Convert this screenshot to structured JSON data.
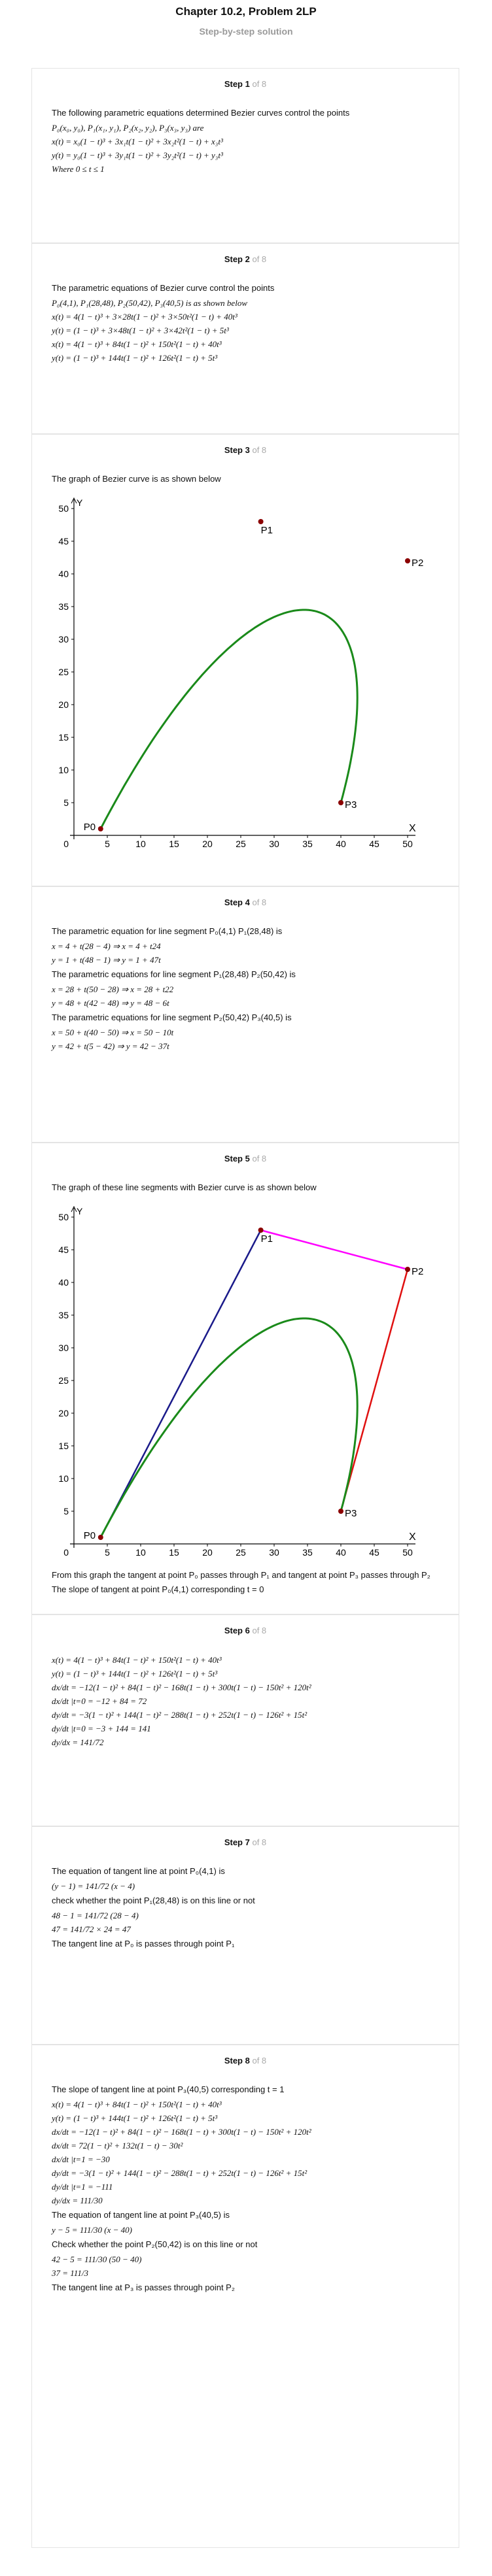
{
  "header": {
    "title": "Chapter 10.2, Problem 2LP",
    "subtitle": "Step-by-step solution"
  },
  "steps": [
    {
      "num": "Step 1",
      "of": "of 8",
      "lines": [
        {
          "type": "text",
          "v": "The following parametric equations determined Bezier curves control the points"
        },
        {
          "type": "math",
          "v": "P₀(x₀, y₀), P₁(x₁, y₁), P₂(x₂, y₂), P₃(x₃, y₃) are"
        },
        {
          "type": "math",
          "v": "x(t) = x₀(1 − t)³ + 3x₁t(1 − t)² + 3x₂t²(1 − t) + x₃t³"
        },
        {
          "type": "math",
          "v": "y(t) = y₀(1 − t)³ + 3y₁t(1 − t)² + 3y₂t²(1 − t) + y₃t³"
        },
        {
          "type": "math",
          "v": "Where   0 ≤ t ≤ 1"
        }
      ]
    },
    {
      "num": "Step 2",
      "of": "of 8",
      "lines": [
        {
          "type": "text",
          "v": "The parametric equations of Bezier curve control the points"
        },
        {
          "type": "math",
          "v": "P₀(4,1), P₁(28,48), P₂(50,42), P₃(40,5) is as shown below"
        },
        {
          "type": "math",
          "v": "x(t) = 4(1 − t)³ + 3×28t(1 − t)² + 3×50t²(1 − t) + 40t³"
        },
        {
          "type": "math",
          "v": "y(t) = (1 − t)³ + 3×48t(1 − t)² + 3×42t²(1 − t) + 5t³"
        },
        {
          "type": "math",
          "v": "x(t) = 4(1 − t)³ + 84t(1 − t)² + 150t²(1 − t) + 40t³"
        },
        {
          "type": "math",
          "v": "y(t) = (1 − t)³ + 144t(1 − t)² + 126t²(1 − t) + 5t³"
        }
      ]
    },
    {
      "num": "Step 3",
      "of": "of 8",
      "lines": [
        {
          "type": "text",
          "v": "The graph of Bezier curve is as shown below"
        }
      ]
    },
    {
      "num": "Step 4",
      "of": "of 8",
      "lines": [
        {
          "type": "text",
          "v": "The parametric equation for line segment  P₀(4,1) P₁(28,48) is"
        },
        {
          "type": "math",
          "v": "x = 4 + t(28 − 4) ⇒ x = 4 + t24"
        },
        {
          "type": "math",
          "v": "y = 1 + t(48 − 1) ⇒ y = 1 + 47t"
        },
        {
          "type": "text",
          "v": "The parametric equations for line segment  P₁(28,48) P₂(50,42) is"
        },
        {
          "type": "math",
          "v": "x = 28 + t(50 − 28) ⇒ x = 28 + t22"
        },
        {
          "type": "math",
          "v": "y = 48 + t(42 − 48) ⇒ y = 48 − 6t"
        },
        {
          "type": "text",
          "v": "The parametric equations for line segment  P₂(50,42) P₃(40,5) is"
        },
        {
          "type": "math",
          "v": "x = 50 + t(40 − 50) ⇒ x = 50 − 10t"
        },
        {
          "type": "math",
          "v": "y = 42 + t(5 − 42) ⇒ y = 42 − 37t"
        }
      ]
    },
    {
      "num": "Step 5",
      "of": "of 8",
      "lines": [
        {
          "type": "text",
          "v": "The graph of these line segments with Bezier curve is as shown below"
        }
      ],
      "after": [
        {
          "type": "text",
          "v": "From this graph the tangent at point  P₀ passes through  P₁ and tangent at point  P₃ passes through  P₂"
        },
        {
          "type": "text",
          "v": "The slope of tangent at point  P₀(4,1) corresponding  t = 0"
        }
      ]
    },
    {
      "num": "Step 6",
      "of": "of 8",
      "lines": [
        {
          "type": "math",
          "v": "x(t) = 4(1 − t)³ + 84t(1 − t)² + 150t²(1 − t) + 40t³"
        },
        {
          "type": "math",
          "v": "y(t) = (1 − t)³ + 144t(1 − t)² + 126t²(1 − t) + 5t³"
        },
        {
          "type": "math",
          "v": "dx/dt = −12(1 − t)² + 84(1 − t)² − 168t(1 − t) + 300t(1 − t) − 150t² + 120t²"
        },
        {
          "type": "math",
          "v": "dx/dt |t=0 = −12 + 84 = 72"
        },
        {
          "type": "math",
          "v": "dy/dt = −3(1 − t)² + 144(1 − t)² − 288t(1 − t) + 252t(1 − t) − 126t² + 15t²"
        },
        {
          "type": "math",
          "v": "dy/dt |t=0 = −3 + 144 = 141"
        },
        {
          "type": "math",
          "v": "dy/dx = 141/72"
        }
      ]
    },
    {
      "num": "Step 7",
      "of": "of 8",
      "lines": [
        {
          "type": "text",
          "v": "The equation of tangent line at point  P₀(4,1) is"
        },
        {
          "type": "math",
          "v": "(y − 1) = 141/72 (x − 4)"
        },
        {
          "type": "text",
          "v": " check whether the point  P₁(28,48) is on this line or not"
        },
        {
          "type": "math",
          "v": "48 − 1 = 141/72 (28 − 4)"
        },
        {
          "type": "math",
          "v": "47 = 141/72 × 24 = 47"
        },
        {
          "type": "text",
          "v": "The tangent line at  P₀ is passes through point  P₁"
        }
      ]
    },
    {
      "num": "Step 8",
      "of": "of 8",
      "lines": [
        {
          "type": "text",
          "v": "The slope of tangent line at point  P₃(40,5) corresponding  t = 1"
        },
        {
          "type": "math",
          "v": "x(t) = 4(1 − t)³ + 84t(1 − t)² + 150t²(1 − t) + 40t³"
        },
        {
          "type": "math",
          "v": "y(t) = (1 − t)³ + 144t(1 − t)² + 126t²(1 − t) + 5t³"
        },
        {
          "type": "math",
          "v": "dx/dt = −12(1 − t)² + 84(1 − t)² − 168t(1 − t) + 300t(1 − t) − 150t² + 120t²"
        },
        {
          "type": "math",
          "v": "dx/dt = 72(1 − t)² + 132t(1 − t) − 30t²"
        },
        {
          "type": "math",
          "v": "dx/dt |t=1 = −30"
        },
        {
          "type": "math",
          "v": "dy/dt = −3(1 − t)² + 144(1 − t)² − 288t(1 − t) + 252t(1 − t) − 126t² + 15t²"
        },
        {
          "type": "math",
          "v": "dy/dt |t=1 = −111"
        },
        {
          "type": "math",
          "v": "dy/dx = 111/30"
        },
        {
          "type": "text",
          "v": "The equation of tangent line at point  P₃(40,5) is"
        },
        {
          "type": "math",
          "v": "y − 5 = 111/30 (x − 40)"
        },
        {
          "type": "text",
          "v": "Check whether the point  P₂(50,42) is on this line or not"
        },
        {
          "type": "math",
          "v": "42 − 5 = 111/30 (50 − 40)"
        },
        {
          "type": "math",
          "v": "37 = 111/3"
        },
        {
          "type": "text",
          "v": "The tangent line at  P₃ is passes through point  P₂"
        }
      ]
    }
  ],
  "chart_data": [
    {
      "type": "line",
      "title": "",
      "xlabel": "X",
      "ylabel": "Y",
      "xlim": [
        0,
        50
      ],
      "ylim": [
        0,
        50
      ],
      "xticks": [
        5,
        10,
        15,
        20,
        25,
        30,
        35,
        40,
        45,
        50
      ],
      "yticks": [
        5,
        10,
        15,
        20,
        25,
        30,
        35,
        40,
        45,
        50
      ],
      "origin_label": "0",
      "points": [
        {
          "name": "P0",
          "x": 4,
          "y": 1
        },
        {
          "name": "P1",
          "x": 28,
          "y": 48
        },
        {
          "name": "P2",
          "x": 50,
          "y": 42
        },
        {
          "name": "P3",
          "x": 40,
          "y": 5
        }
      ],
      "curve_color": "#1a8a1a",
      "point_color": "#8b0000"
    },
    {
      "type": "line",
      "title": "",
      "xlabel": "X",
      "ylabel": "Y",
      "xlim": [
        0,
        50
      ],
      "ylim": [
        0,
        50
      ],
      "xticks": [
        5,
        10,
        15,
        20,
        25,
        30,
        35,
        40,
        45,
        50
      ],
      "yticks": [
        5,
        10,
        15,
        20,
        25,
        30,
        35,
        40,
        45,
        50
      ],
      "origin_label": "0",
      "points": [
        {
          "name": "P0",
          "x": 4,
          "y": 1
        },
        {
          "name": "P1",
          "x": 28,
          "y": 48
        },
        {
          "name": "P2",
          "x": 50,
          "y": 42
        },
        {
          "name": "P3",
          "x": 40,
          "y": 5
        }
      ],
      "segments": [
        {
          "from": "P0",
          "to": "P1",
          "color": "#1a1a8a"
        },
        {
          "from": "P1",
          "to": "P2",
          "color": "#ff00ff"
        },
        {
          "from": "P2",
          "to": "P3",
          "color": "#e01010"
        }
      ],
      "curve_color": "#1a8a1a",
      "point_color": "#8b0000"
    }
  ]
}
